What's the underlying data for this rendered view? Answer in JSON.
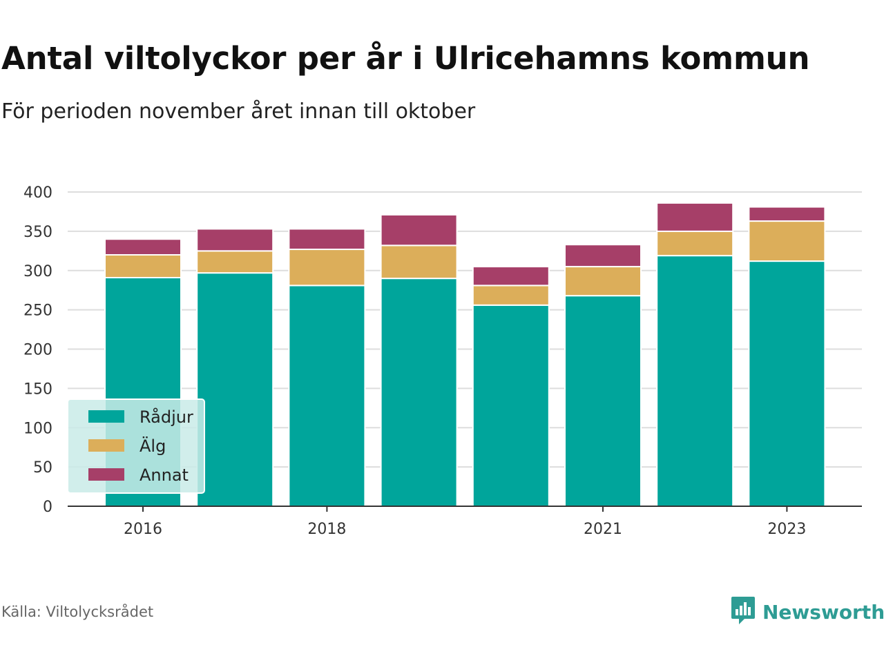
{
  "header": {
    "title": "Antal viltolyckor per år i Ulricehamns kommun",
    "subtitle": "För perioden november året innan till oktober"
  },
  "footer": {
    "source": "Källa: Viltolycksrådet",
    "brand": "Newsworthy",
    "brand_icon": "bar-chart-speech-bubble-icon"
  },
  "colors": {
    "radjur": "#00a59b",
    "alg": "#dcae5a",
    "annat": "#a63f68",
    "grid": "#dddddd",
    "axis": "#333333",
    "legend_bg": "#c9ebe8",
    "brand": "#2e9c94"
  },
  "chart_data": {
    "type": "bar",
    "stacked": true,
    "categories": [
      "2016",
      "2017",
      "2018",
      "2019",
      "2020",
      "2021",
      "2022",
      "2023"
    ],
    "x_tick_labels": [
      "2016",
      "",
      "2018",
      "",
      "",
      "2021",
      "",
      "2023"
    ],
    "series": [
      {
        "name": "Rådjur",
        "color": "#00a59b",
        "values": [
          291,
          297,
          281,
          290,
          256,
          268,
          319,
          312
        ]
      },
      {
        "name": "Älg",
        "color": "#dcae5a",
        "values": [
          29,
          28,
          46,
          42,
          25,
          37,
          31,
          51
        ]
      },
      {
        "name": "Annat",
        "color": "#a63f68",
        "values": [
          20,
          28,
          26,
          39,
          24,
          28,
          36,
          18
        ]
      }
    ],
    "ylim": [
      0,
      400
    ],
    "yticks": [
      0,
      50,
      100,
      150,
      200,
      250,
      300,
      350,
      400
    ],
    "grid": true,
    "legend_position": "bottom-left"
  }
}
